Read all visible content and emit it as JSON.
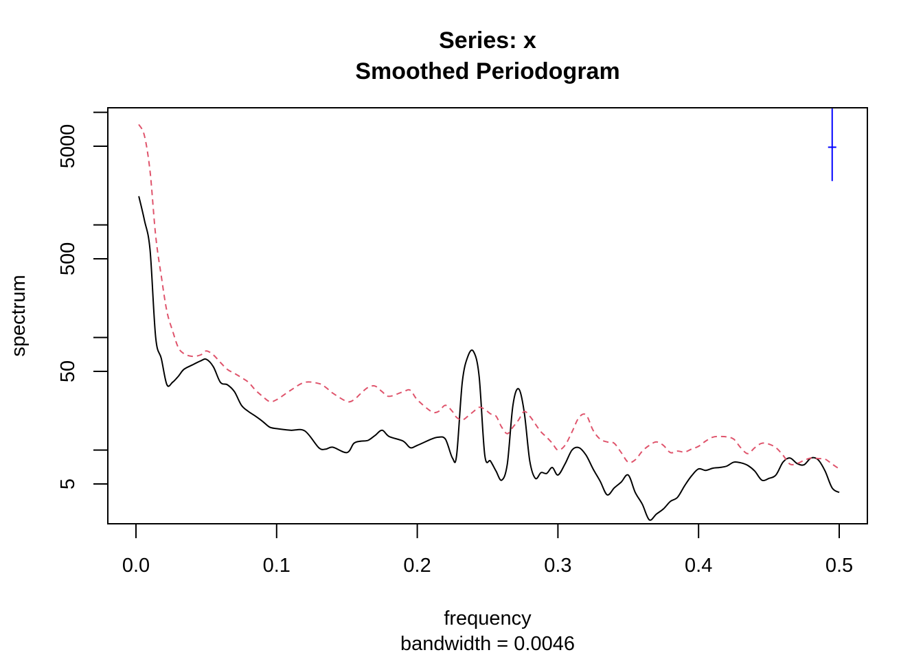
{
  "chart_data": {
    "type": "line",
    "title": "Series: x",
    "subtitle": "Smoothed Periodogram",
    "xlabel": "frequency",
    "xsublabel": "bandwidth = 0.0046",
    "ylabel": "spectrum",
    "y_scale": "log",
    "xlim": [
      0,
      0.5
    ],
    "ylim": [
      2.2,
      8000
    ],
    "x_ticks": [
      0.0,
      0.1,
      0.2,
      0.3,
      0.4,
      0.5
    ],
    "x_tick_labels": [
      "0.0",
      "0.1",
      "0.2",
      "0.3",
      "0.4",
      "0.5"
    ],
    "y_ticks_labeled": [
      5,
      50,
      500,
      5000
    ],
    "y_tick_labels": [
      "5",
      "50",
      "500",
      "5000"
    ],
    "y_ticks_minor": [
      10,
      100,
      1000,
      10000
    ],
    "grid": false,
    "series": [
      {
        "line_style": "solid",
        "color": "#000000",
        "x": [
          0.002,
          0.006,
          0.01,
          0.014,
          0.018,
          0.022,
          0.026,
          0.03,
          0.034,
          0.04,
          0.046,
          0.05,
          0.055,
          0.06,
          0.065,
          0.07,
          0.075,
          0.08,
          0.085,
          0.09,
          0.095,
          0.1,
          0.11,
          0.12,
          0.13,
          0.135,
          0.14,
          0.15,
          0.155,
          0.16,
          0.165,
          0.17,
          0.175,
          0.18,
          0.19,
          0.195,
          0.2,
          0.21,
          0.215,
          0.22,
          0.225,
          0.228,
          0.232,
          0.236,
          0.24,
          0.244,
          0.248,
          0.252,
          0.256,
          0.26,
          0.264,
          0.268,
          0.272,
          0.276,
          0.28,
          0.284,
          0.288,
          0.292,
          0.296,
          0.3,
          0.305,
          0.31,
          0.315,
          0.32,
          0.325,
          0.33,
          0.335,
          0.34,
          0.345,
          0.35,
          0.355,
          0.36,
          0.365,
          0.37,
          0.375,
          0.38,
          0.385,
          0.39,
          0.395,
          0.4,
          0.405,
          0.41,
          0.415,
          0.42,
          0.425,
          0.43,
          0.435,
          0.44,
          0.445,
          0.45,
          0.455,
          0.46,
          0.465,
          0.47,
          0.475,
          0.48,
          0.485,
          0.49,
          0.495,
          0.5
        ],
        "values": [
          1800,
          1100,
          600,
          100,
          65,
          38,
          40,
          45,
          52,
          57,
          62,
          64,
          55,
          40,
          38,
          33,
          25,
          22,
          20,
          18,
          16,
          15.5,
          15,
          14.8,
          10.5,
          10.2,
          10.6,
          9.5,
          11.5,
          12,
          12.2,
          13.5,
          15,
          13.2,
          12,
          10.5,
          11,
          12.5,
          13,
          12.5,
          8.5,
          9,
          40,
          68,
          75,
          45,
          9,
          8,
          6.5,
          5.4,
          7.5,
          25,
          35,
          22,
          8,
          5.6,
          6.3,
          6.2,
          7,
          6,
          7.5,
          10,
          10.5,
          9,
          6.8,
          5.3,
          4,
          4.6,
          5.2,
          6,
          4.2,
          3.3,
          2.4,
          2.7,
          3,
          3.5,
          3.8,
          4.8,
          5.9,
          6.8,
          6.6,
          6.9,
          7,
          7.2,
          7.8,
          7.7,
          7.3,
          6.5,
          5.4,
          5.6,
          6,
          7.8,
          8.5,
          7.6,
          7.4,
          8.5,
          8.2,
          6.5,
          4.6,
          4.2
        ]
      },
      {
        "line_style": "dashed",
        "color": "#DF536B",
        "x": [
          0.002,
          0.006,
          0.01,
          0.014,
          0.018,
          0.022,
          0.026,
          0.03,
          0.034,
          0.04,
          0.046,
          0.05,
          0.055,
          0.06,
          0.065,
          0.07,
          0.075,
          0.08,
          0.085,
          0.09,
          0.095,
          0.1,
          0.11,
          0.12,
          0.13,
          0.135,
          0.14,
          0.15,
          0.155,
          0.16,
          0.165,
          0.17,
          0.175,
          0.18,
          0.19,
          0.195,
          0.2,
          0.21,
          0.215,
          0.22,
          0.225,
          0.228,
          0.232,
          0.236,
          0.24,
          0.244,
          0.248,
          0.252,
          0.256,
          0.26,
          0.264,
          0.268,
          0.272,
          0.276,
          0.28,
          0.284,
          0.288,
          0.292,
          0.296,
          0.3,
          0.305,
          0.31,
          0.315,
          0.32,
          0.325,
          0.33,
          0.335,
          0.34,
          0.345,
          0.35,
          0.355,
          0.36,
          0.365,
          0.37,
          0.375,
          0.38,
          0.385,
          0.39,
          0.395,
          0.4,
          0.405,
          0.41,
          0.415,
          0.42,
          0.425,
          0.43,
          0.435,
          0.44,
          0.445,
          0.45,
          0.455,
          0.46,
          0.465,
          0.47,
          0.475,
          0.48,
          0.485,
          0.49,
          0.495,
          0.5
        ],
        "values": [
          7800,
          6200,
          3000,
          800,
          350,
          170,
          115,
          82,
          72,
          68,
          70,
          76,
          70,
          60,
          52,
          48,
          44,
          40,
          34,
          30,
          27,
          28,
          34,
          40,
          39,
          36,
          32,
          27,
          28,
          32,
          36,
          37,
          33,
          30,
          33,
          34,
          28,
          22,
          22,
          25,
          22,
          19.5,
          18.5,
          20,
          22,
          24,
          23,
          21,
          20,
          16,
          14,
          16,
          18.5,
          22,
          20,
          17,
          14.5,
          13,
          11.5,
          10,
          11,
          14.5,
          19.5,
          20.5,
          15,
          12.5,
          11.8,
          11.5,
          9.5,
          7.8,
          8.2,
          9.8,
          11,
          11.8,
          11,
          9.5,
          9.8,
          9.6,
          10.2,
          10.8,
          12,
          13,
          13.2,
          13.1,
          12.5,
          10.5,
          9.3,
          10.5,
          11.5,
          11.3,
          10.5,
          9,
          7.5,
          7.6,
          8.1,
          8.5,
          8.4,
          8.3,
          7.5,
          6.8
        ]
      }
    ],
    "ci_bar": {
      "color": "#0000FF",
      "x": 0.495,
      "center": 4900,
      "lower": 2450,
      "upper": 10800
    }
  }
}
